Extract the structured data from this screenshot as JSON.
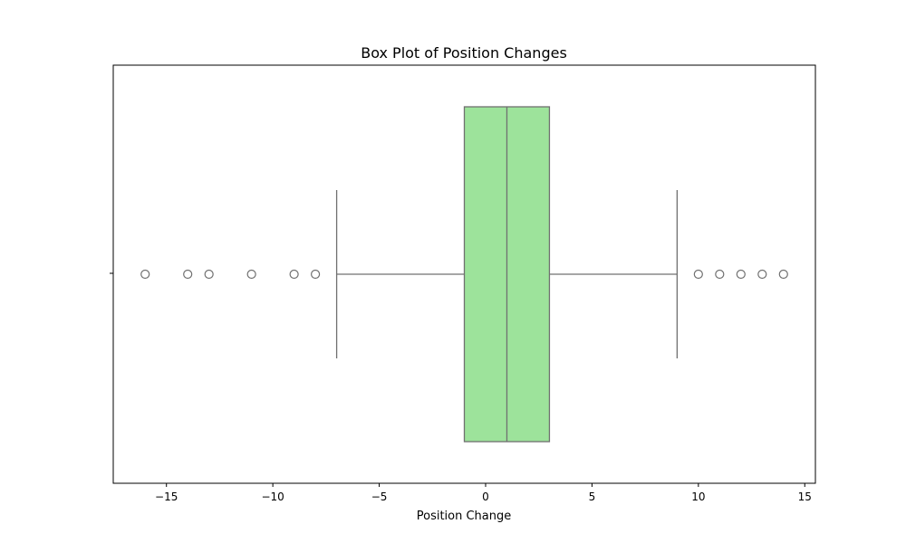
{
  "chart_data": {
    "type": "box",
    "title": "Box Plot of Position Changes",
    "xlabel": "Position Change",
    "ylabel": "",
    "xlim": [
      -17.5,
      15.5
    ],
    "xticks": [
      -15,
      -10,
      -5,
      0,
      5,
      10,
      15
    ],
    "xtick_labels": [
      "−15",
      "−10",
      "−5",
      "0",
      "5",
      "10",
      "15"
    ],
    "grid": false,
    "box": {
      "q1": -1,
      "median": 1,
      "q3": 3,
      "whisker_low": -7,
      "whisker_high": 9,
      "fill_color": "#9de39b",
      "line_color": "#707070"
    },
    "outliers": [
      -16,
      -14,
      -13,
      -11,
      -9,
      -8,
      10,
      11,
      12,
      13,
      14
    ]
  }
}
